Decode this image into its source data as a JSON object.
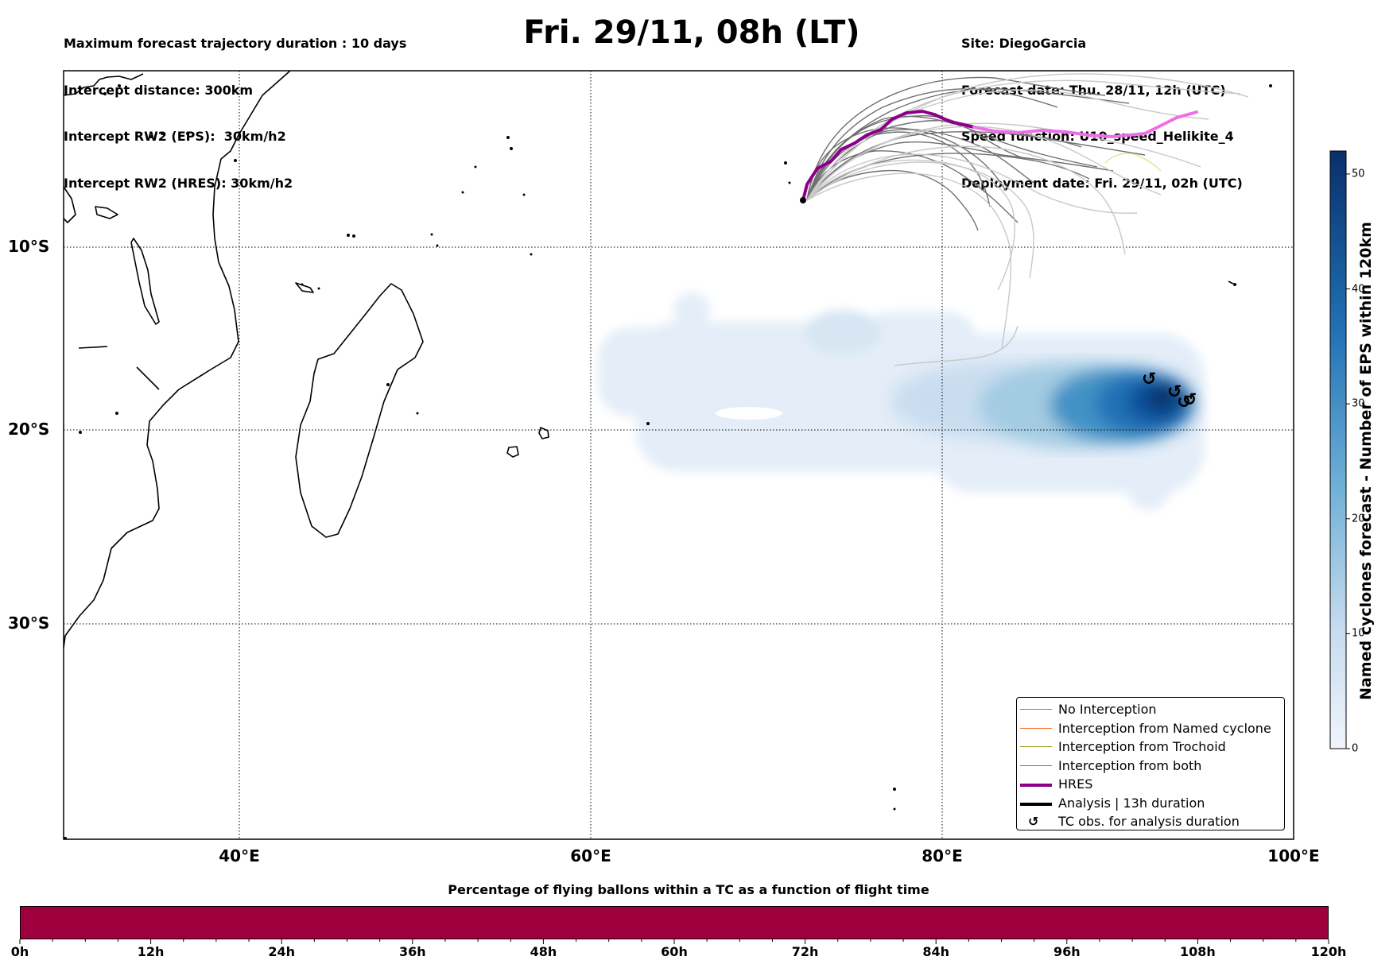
{
  "header_left": {
    "line1": "Maximum forecast trajectory duration : 10 days",
    "line2": "Intercept distance: 300km",
    "line3": "Intercept RW2 (EPS):  30km/h2",
    "line4": "Intercept RW2 (HRES): 30km/h2"
  },
  "title": "Fri. 29/11, 08h (LT)",
  "header_right": {
    "line1": "Site: DiegoGarcia",
    "line2": "Forecast date: Thu. 28/11, 12h (UTC)",
    "line3": "Speed function: U10_speed_Helikite_4",
    "line4": "Deployment date: Fri. 29/11, 02h (UTC)"
  },
  "map": {
    "lat_labels": [
      "10°S",
      "20°S",
      "30°S"
    ],
    "lon_labels": [
      "40°E",
      "60°E",
      "80°E",
      "100°E"
    ]
  },
  "colorbar": {
    "title": "Named cyclones forecast - Number of EPS within 120km",
    "ticks": [
      "0",
      "10",
      "20",
      "30",
      "40",
      "50"
    ],
    "tick_values": [
      0,
      10,
      20,
      30,
      40,
      50
    ],
    "max": 52,
    "color_low": "#f0f5fb",
    "color_high": "#08306b"
  },
  "legend": {
    "items": [
      {
        "label": "No Interception",
        "color": "#808080"
      },
      {
        "label": "Interception from Named cyclone",
        "color": "#ff6a2b"
      },
      {
        "label": "Interception from Trochoid",
        "color": "#9a9a1e"
      },
      {
        "label": "Interception from both",
        "color": "#2ca02c"
      },
      {
        "label": "HRES",
        "color": "#8b008b"
      },
      {
        "label": "Analysis | 13h duration",
        "color": "#000000"
      },
      {
        "label": "TC obs. for analysis duration",
        "symbol": "↺"
      }
    ]
  },
  "flight_bar": {
    "title": "Percentage of flying ballons within a TC as a function of flight time",
    "hour_labels": [
      "0h",
      "12h",
      "24h",
      "36h",
      "48h",
      "60h",
      "72h",
      "84h",
      "96h",
      "108h",
      "120h"
    ],
    "fill_color": "#9e003d",
    "percentage": 0
  },
  "tc_symbol": "↺"
}
